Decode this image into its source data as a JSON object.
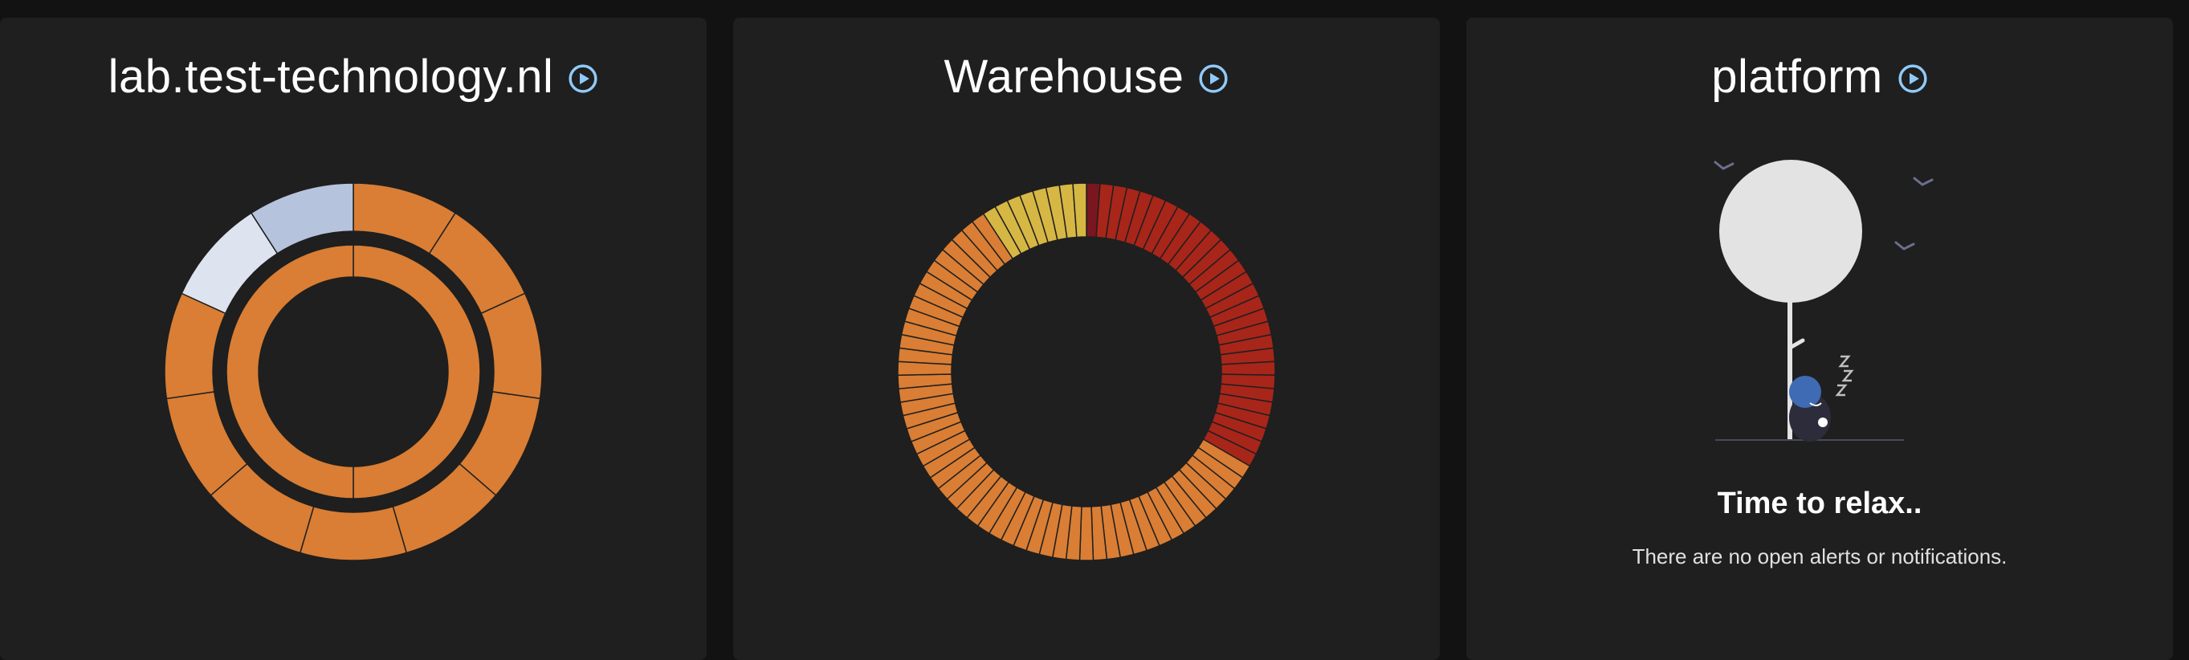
{
  "panels": [
    {
      "title": "lab.test-technology.nl",
      "play_icon": "play-circle-icon",
      "chart_data": {
        "type": "pie",
        "rings": [
          {
            "name": "outer",
            "slices": [
              {
                "value": 1,
                "color": "#d97e34"
              },
              {
                "value": 1,
                "color": "#d97e34"
              },
              {
                "value": 1,
                "color": "#d97e34"
              },
              {
                "value": 1,
                "color": "#d97e34"
              },
              {
                "value": 1,
                "color": "#d97e34"
              },
              {
                "value": 1,
                "color": "#d97e34"
              },
              {
                "value": 1,
                "color": "#d97e34"
              },
              {
                "value": 1,
                "color": "#d97e34"
              },
              {
                "value": 1,
                "color": "#d97e34"
              },
              {
                "value": 1,
                "color": "#dde3ef"
              },
              {
                "value": 1,
                "color": "#b6c3dc"
              }
            ]
          },
          {
            "name": "inner",
            "slices": [
              {
                "value": 1,
                "color": "#d97e34"
              },
              {
                "value": 1,
                "color": "#d97e34"
              }
            ]
          }
        ]
      }
    },
    {
      "title": "Warehouse",
      "play_icon": "play-circle-icon",
      "chart_data": {
        "type": "pie",
        "segments": [
          {
            "count": 1,
            "color": "#7a1620"
          },
          {
            "count": 28,
            "color": "#a8251a"
          },
          {
            "count": 50,
            "color": "#d97e34"
          },
          {
            "count": 8,
            "color": "#d6b744"
          }
        ]
      }
    },
    {
      "title": "platform",
      "play_icon": "play-circle-icon",
      "empty_state": {
        "illustration": "sleeping-under-tree",
        "title": "Time to relax..",
        "message": "There are no open alerts or notifications."
      }
    }
  ],
  "colors": {
    "panel_bg": "#1f1f1f",
    "page_bg": "#121212",
    "accent_icon": "#90caf9"
  }
}
